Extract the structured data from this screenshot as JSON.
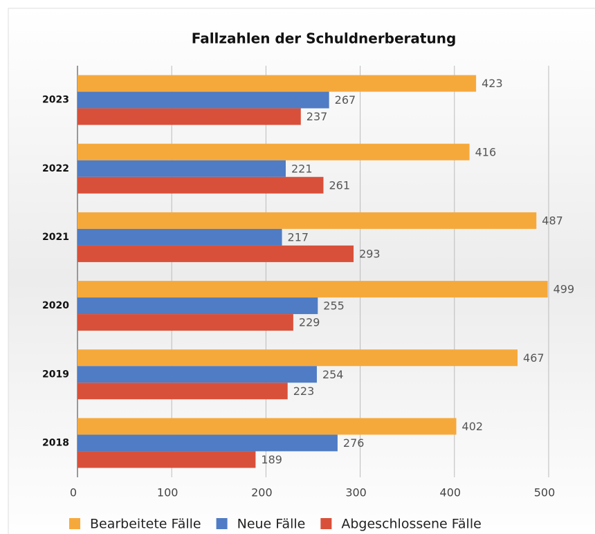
{
  "chart_data": {
    "type": "bar",
    "orientation": "horizontal",
    "title": "Fallzahlen der Schuldnerberatung",
    "categories": [
      "2023",
      "2022",
      "2021",
      "2020",
      "2019",
      "2018"
    ],
    "series": [
      {
        "name": "Bearbeitete Fälle",
        "color": "#f6a93b",
        "values": [
          423,
          416,
          487,
          499,
          467,
          402
        ]
      },
      {
        "name": "Neue Fälle",
        "color": "#4f7cc4",
        "values": [
          267,
          221,
          217,
          255,
          254,
          276
        ]
      },
      {
        "name": "Abgeschlossene Fälle",
        "color": "#d9503a",
        "values": [
          237,
          261,
          293,
          229,
          223,
          189
        ]
      }
    ],
    "xlim": [
      0,
      500
    ],
    "xticks": [
      0,
      100,
      200,
      300,
      400,
      500
    ],
    "grid": true,
    "legend": "bottom"
  }
}
